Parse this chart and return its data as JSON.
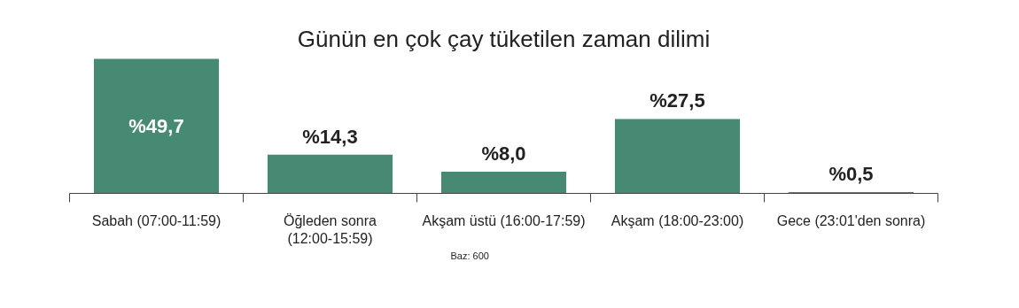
{
  "chart_data": {
    "type": "bar",
    "title": "Günün en çok çay tüketilen zaman dilimi",
    "categories": [
      "Sabah (07:00-11:59)",
      "Öğleden sonra\n(12:00-15:59)",
      "Akşam üstü (16:00-17:59)",
      "Akşam (18:00-23:00)",
      "Gece (23:01'den sonra)"
    ],
    "values": [
      49.7,
      14.3,
      8.0,
      27.5,
      0.5
    ],
    "value_labels": [
      "%49,7",
      "%14,3",
      "%8,0",
      "%27,5",
      "%0,5"
    ],
    "color": "#478a74",
    "grid": false,
    "annotations": [
      "Baz: 600"
    ]
  }
}
